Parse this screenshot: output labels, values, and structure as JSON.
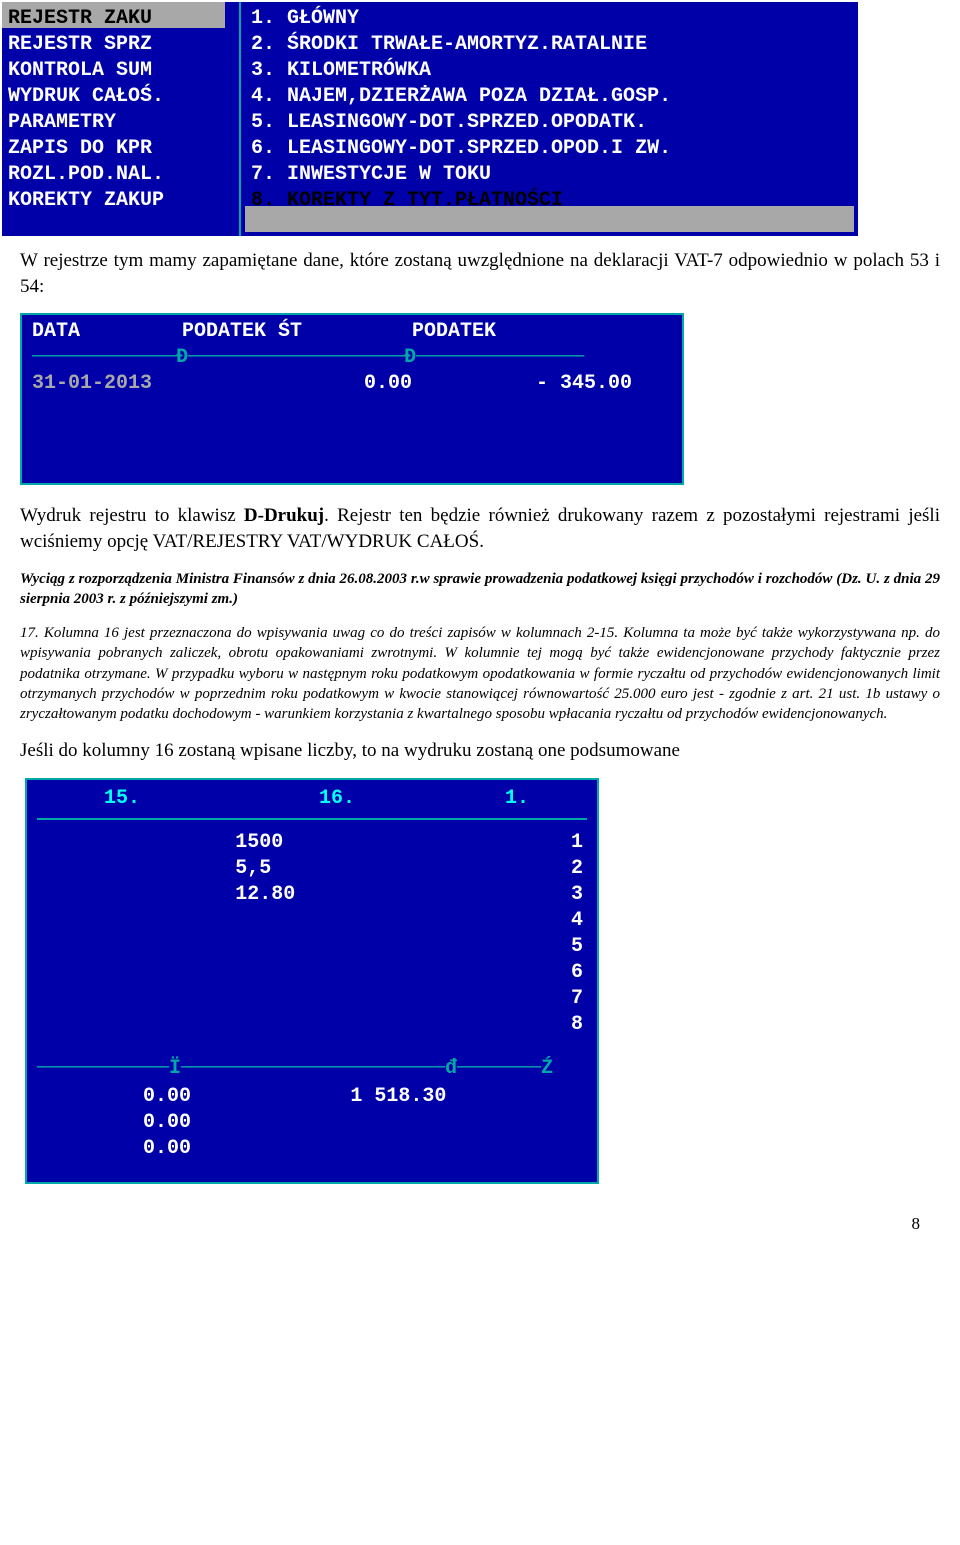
{
  "top_menu": {
    "left_items": [
      "REJESTR ZAKU",
      "REJESTR SPRZ",
      "KONTROLA SUM",
      "WYDRUK CAŁOŚ.",
      "PARAMETRY",
      "ZAPIS DO KPR",
      "ROZL.POD.NAL.",
      "KOREKTY ZAKUP"
    ],
    "left_selected_index": 0,
    "right_items": [
      "1. GŁÓWNY",
      "2. ŚRODKI TRWAŁE-AMORTYZ.RATALNIE",
      "3. KILOMETRÓWKA",
      "4. NAJEM,DZIERŻAWA POZA DZIAŁ.GOSP.",
      "5. LEASINGOWY-DOT.SPRZED.OPODATK.",
      "6. LEASINGOWY-DOT.SPRZED.OPOD.I ZW.",
      "7. INWESTYCJE W TOKU",
      "8. KOREKTY Z TYT.PŁATNOŚCI"
    ],
    "right_selected_index": 7
  },
  "para1": "W rejestrze tym mamy zapamiętane dane, które zostaną uwzględnione na deklaracji VAT-7 odpowiednio w polach 53 i 54:",
  "data_window": {
    "headers": [
      "DATA",
      "PODATEK ŚT",
      "PODATEK"
    ],
    "divider_marks": "────────────Đ──────────────────Đ──────────────",
    "row": {
      "date": "31-01-2013",
      "pst": "0.00",
      "pod": "- 345.00"
    }
  },
  "para2a": "Wydruk rejestru to klawisz ",
  "para2b": "D-Drukuj",
  "para2c": ". Rejestr ten będzie również drukowany razem z pozostałymi rejestrami jeśli wciśniemy opcję VAT/REJESTRY VAT/WYDRUK CAŁOŚ.",
  "ital_para": "Wyciąg z rozporządzenia Ministra Finansów z dnia 26.08.2003 r.w sprawie prowadzenia podatkowej księgi przychodów i rozchodów (Dz. U. z dnia 29 sierpnia 2003 r. z późniejszymi zm.)",
  "ital_para2": "17. Kolumna 16 jest przeznaczona do wpisywania uwag co do treści zapisów w kolumnach 2-15. Kolumna ta może być także wykorzystywana np. do wpisywania pobranych zaliczek, obrotu opakowaniami zwrotnymi. W kolumnie tej mogą być także ewidencjonowane przychody faktycznie przez podatnika otrzymane. W przypadku wyboru w następnym roku podatkowym opodatkowania w formie ryczałtu od przychodów ewidencjonowanych limit otrzymanych przychodów w poprzednim roku podatkowym w kwocie stanowiącej równowartość 25.000 euro jest - zgodnie z art. 21 ust. 1b ustawy o zryczałtowanym podatku dochodowym - warunkiem korzystania z kwartalnego sposobu wpłacania ryczałtu od przychodów ewidencjonowanych.",
  "para3": "Jeśli do kolumny 16 zostaną wpisane liczby, to na wydruku zostaną one podsumowane",
  "bottom": {
    "headers": [
      "15.",
      "16.",
      "1."
    ],
    "rows": [
      {
        "c15": "",
        "c16": "1500",
        "c1": "1"
      },
      {
        "c15": "",
        "c16": "5,5",
        "c1": "2"
      },
      {
        "c15": "",
        "c16": "12.80",
        "c1": "3"
      },
      {
        "c15": "",
        "c16": "",
        "c1": "4"
      },
      {
        "c15": "",
        "c16": "",
        "c1": "5"
      },
      {
        "c15": "",
        "c16": "",
        "c1": "6"
      },
      {
        "c15": "",
        "c16": "",
        "c1": "7"
      },
      {
        "c15": "",
        "c16": "",
        "c1": "8"
      }
    ],
    "divider": "───────────Ï──────────────────────đ───────Ź",
    "footer15": [
      "0.00",
      "0.00",
      "0.00"
    ],
    "footer16": "1 518.30"
  },
  "page_number": "8"
}
